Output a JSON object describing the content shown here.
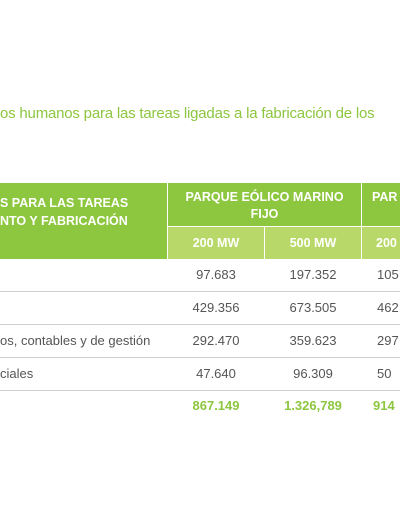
{
  "title": "os humanos para las tareas ligadas a la fabricación de los",
  "table": {
    "header": {
      "first_col_line1": "S PARA LAS TAREAS",
      "first_col_line2": "NTO Y FABRICACIÓN",
      "group1_line1": "PARQUE EÓLICO MARINO",
      "group1_line2": "FIJO",
      "group2": "PAR",
      "sub": [
        "200 MW",
        "500 MW",
        "200"
      ]
    },
    "rows": [
      {
        "label": "",
        "v1": "97.683",
        "v2": "197.352",
        "v3": "105"
      },
      {
        "label": "",
        "v1": "429.356",
        "v2": "673.505",
        "v3": "462"
      },
      {
        "label": "os, contables y de gestión",
        "v1": "292.470",
        "v2": "359.623",
        "v3": "297"
      },
      {
        "label": "ciales",
        "v1": "47.640",
        "v2": "96.309",
        "v3": "50"
      },
      {
        "label": "",
        "v1": "867.149",
        "v2": "1.326,789",
        "v3": "914"
      }
    ]
  },
  "colors": {
    "accent": "#8dc63f",
    "accent_light": "#b8d96a",
    "text": "#555555",
    "rule": "#cfcfcf"
  }
}
